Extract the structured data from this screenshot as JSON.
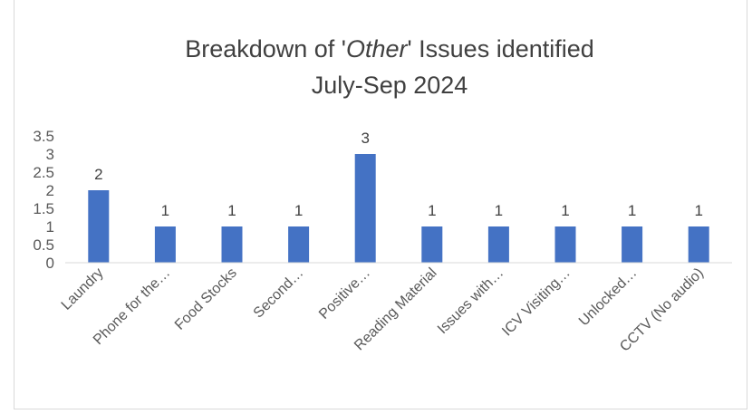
{
  "chart_data": {
    "type": "bar",
    "title_line1_prefix": "Breakdown of '",
    "title_line1_italic": "Other",
    "title_line1_suffix": "' Issues identified",
    "title_line2": "July-Sep 2024",
    "categories": [
      "Laundry",
      "Phone for the…",
      "Food Stocks",
      "Second…",
      "Positive…",
      "Reading Material",
      "Issues with…",
      "ICV Visiting…",
      "Unlocked…",
      "CCTV (No audio)"
    ],
    "values": [
      2,
      1,
      1,
      1,
      3,
      1,
      1,
      1,
      1,
      1
    ],
    "data_labels": [
      "2",
      "1",
      "1",
      "1",
      "3",
      "1",
      "1",
      "1",
      "1",
      "1"
    ],
    "ylim": [
      0,
      3.5
    ],
    "yticks": [
      0,
      0.5,
      1,
      1.5,
      2,
      2.5,
      3,
      3.5
    ],
    "ytick_labels": [
      "0",
      "0.5",
      "1",
      "1.5",
      "2",
      "2.5",
      "3",
      "3.5"
    ],
    "grid": false,
    "legend": "none",
    "bar_color": "#4472c4"
  }
}
